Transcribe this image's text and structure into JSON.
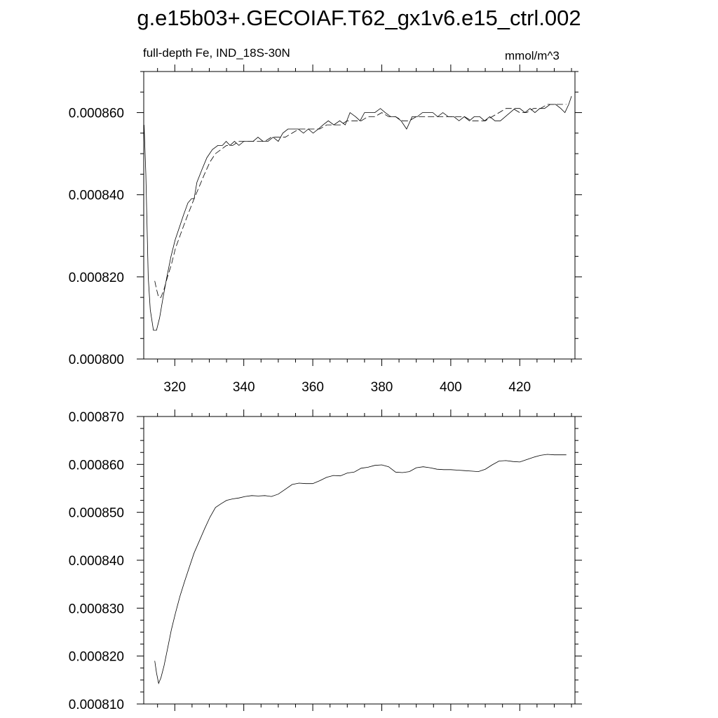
{
  "page": {
    "title": "g.e15b03+.GECOIAF.T62_gx1v6.e15_ctrl.002"
  },
  "chart_data": [
    {
      "type": "line",
      "title": "",
      "subtitle_left": "full-depth Fe, IND_18S-30N",
      "subtitle_right": "mmol/m^3",
      "xlabel": "",
      "ylabel": "",
      "xlim": [
        311,
        436
      ],
      "ylim": [
        0.0008,
        0.00087
      ],
      "x_ticks": [
        320,
        340,
        360,
        380,
        400,
        420
      ],
      "x_tick_labels": [
        "320",
        "340",
        "360",
        "380",
        "400",
        "420"
      ],
      "y_ticks": [
        0.0008,
        0.00082,
        0.00084,
        0.00086
      ],
      "y_tick_labels": [
        "0.000800",
        "0.000820",
        "0.000840",
        "0.000860"
      ],
      "grid": false,
      "series": [
        {
          "style": "solid",
          "x": [
            311.1,
            311.6,
            312.3,
            312.9,
            313.8,
            314.7,
            315.6,
            316.6,
            317.7,
            318.9,
            320.1,
            321.3,
            322.5,
            323.8,
            324.8,
            325.6,
            326.4,
            327.8,
            329.3,
            330.9,
            332.5,
            333.8,
            334.9,
            336.0,
            337.3,
            338.6,
            340.0,
            341.5,
            342.7,
            344.1,
            345.6,
            347.0,
            348.5,
            350.0,
            351.3,
            352.8,
            354.2,
            355.8,
            357.3,
            358.7,
            360.1,
            361.6,
            363.0,
            364.5,
            366.1,
            367.8,
            369.4,
            370.8,
            372.4,
            373.7,
            375.0,
            376.5,
            378.0,
            379.6,
            381.0,
            382.6,
            384.0,
            385.6,
            387.2,
            388.8,
            390.3,
            391.8,
            393.4,
            394.8,
            396.2,
            397.7,
            399.3,
            400.9,
            402.4,
            403.9,
            405.4,
            406.8,
            408.4,
            409.8,
            411.3,
            412.8,
            414.4,
            415.8,
            417.2,
            418.6,
            420.0,
            421.5,
            423.0,
            424.4,
            425.8,
            427.2,
            428.8,
            430.4,
            431.9,
            433.1,
            434.2,
            435.0
          ],
          "y": [
            0.000857,
            0.000845,
            0.00082,
            0.000812,
            0.000807,
            0.000807,
            0.00081,
            0.000815,
            0.00082,
            0.000825,
            0.000829,
            0.000832,
            0.000835,
            0.000838,
            0.000839,
            0.000839,
            0.000843,
            0.000846,
            0.000849,
            0.000851,
            0.000852,
            0.000852,
            0.000853,
            0.000852,
            0.000853,
            0.000852,
            0.000853,
            0.000853,
            0.000853,
            0.000854,
            0.000853,
            0.000853,
            0.000854,
            0.000853,
            0.000855,
            0.000856,
            0.000856,
            0.000856,
            0.000855,
            0.000856,
            0.000855,
            0.000856,
            0.000857,
            0.000858,
            0.000857,
            0.000858,
            0.000857,
            0.00086,
            0.000859,
            0.000858,
            0.00086,
            0.00086,
            0.00086,
            0.000861,
            0.00086,
            0.000859,
            0.000859,
            0.000858,
            0.000856,
            0.000859,
            0.000859,
            0.00086,
            0.00086,
            0.00086,
            0.000859,
            0.00086,
            0.000859,
            0.000859,
            0.000858,
            0.000859,
            0.000858,
            0.000859,
            0.000859,
            0.000858,
            0.000859,
            0.000858,
            0.000858,
            0.000859,
            0.00086,
            0.000861,
            0.000861,
            0.00086,
            0.000861,
            0.00086,
            0.000861,
            0.000861,
            0.000862,
            0.000862,
            0.000861,
            0.00086,
            0.000862,
            0.000864
          ]
        },
        {
          "style": "dashed",
          "x": [
            314.2,
            314.7,
            315.3,
            316.0,
            316.9,
            317.9,
            319.0,
            320.2,
            321.5,
            322.8,
            324.2,
            325.6,
            327.1,
            328.6,
            330.2,
            331.8,
            333.4,
            335.0,
            336.8,
            338.6,
            340.4,
            342.3,
            344.2,
            346.1,
            348.0,
            350.0,
            352.0,
            354.0,
            356.0,
            358.0,
            360.0,
            362.0,
            364.0,
            366.0,
            368.0,
            370.0,
            372.0,
            374.0,
            376.0,
            378.0,
            380.0,
            382.0,
            384.0,
            386.0,
            388.0,
            390.0,
            392.0,
            394.0,
            396.0,
            398.0,
            400.0,
            402.0,
            404.0,
            406.0,
            408.0,
            410.0,
            412.0,
            414.0,
            416.0,
            418.0,
            420.0,
            422.0,
            424.0,
            426.0,
            428.0,
            430.0,
            432.0,
            433.5
          ],
          "y": [
            0.000819,
            0.000817,
            0.000815,
            0.000815,
            0.000817,
            0.00082,
            0.000823,
            0.000827,
            0.00083,
            0.000833,
            0.000836,
            0.000839,
            0.000842,
            0.000845,
            0.000848,
            0.00085,
            0.000851,
            0.000852,
            0.000852,
            0.000853,
            0.000853,
            0.000853,
            0.000853,
            0.000853,
            0.000854,
            0.000854,
            0.000854,
            0.000855,
            0.000856,
            0.000856,
            0.000856,
            0.000856,
            0.000857,
            0.000857,
            0.000857,
            0.000858,
            0.000858,
            0.000858,
            0.000859,
            0.000859,
            0.00086,
            0.000859,
            0.000859,
            0.000858,
            0.000858,
            0.000859,
            0.000859,
            0.000859,
            0.000859,
            0.000859,
            0.000859,
            0.000859,
            0.000859,
            0.000858,
            0.000858,
            0.000858,
            0.000859,
            0.00086,
            0.000861,
            0.000861,
            0.00086,
            0.00086,
            0.000861,
            0.000861,
            0.000862,
            0.000862,
            0.000862,
            0.000862
          ]
        }
      ]
    },
    {
      "type": "line",
      "title": "",
      "xlabel": "",
      "ylabel": "",
      "xlim": [
        311,
        436
      ],
      "ylim": [
        0.00081,
        0.00087
      ],
      "x_ticks": [
        320,
        340,
        360,
        380,
        400,
        420
      ],
      "x_tick_labels": [],
      "y_ticks": [
        0.00081,
        0.00082,
        0.00083,
        0.00084,
        0.00085,
        0.00086,
        0.00087
      ],
      "y_tick_labels": [
        "0.000810",
        "0.000820",
        "0.000830",
        "0.000840",
        "0.000850",
        "0.000860",
        "0.000870"
      ],
      "grid": false,
      "series": [
        {
          "style": "solid",
          "x": [
            314.2,
            314.7,
            315.3,
            316.0,
            316.9,
            317.9,
            319.0,
            320.2,
            321.5,
            322.8,
            324.2,
            325.6,
            327.1,
            328.6,
            330.2,
            331.8,
            333.4,
            335.0,
            336.8,
            338.6,
            340.4,
            342.3,
            344.2,
            346.1,
            348.0,
            350.0,
            352.0,
            354.0,
            356.0,
            358.0,
            360.0,
            362.0,
            364.0,
            366.0,
            368.0,
            370.0,
            372.0,
            374.0,
            376.0,
            378.0,
            380.0,
            382.0,
            384.0,
            386.0,
            388.0,
            390.0,
            392.0,
            394.0,
            396.0,
            398.0,
            400.0,
            402.0,
            404.0,
            406.0,
            408.0,
            410.0,
            412.0,
            414.0,
            416.0,
            418.0,
            420.0,
            422.0,
            424.0,
            426.0,
            428.0,
            430.0,
            432.0,
            433.5
          ],
          "y": [
            0.000819,
            0.0008165,
            0.0008143,
            0.0008155,
            0.000818,
            0.0008215,
            0.0008255,
            0.000829,
            0.0008325,
            0.0008355,
            0.0008385,
            0.0008415,
            0.000844,
            0.0008465,
            0.000849,
            0.000851,
            0.0008518,
            0.0008525,
            0.0008528,
            0.000853,
            0.0008533,
            0.0008535,
            0.0008534,
            0.0008535,
            0.0008533,
            0.0008538,
            0.0008548,
            0.0008558,
            0.0008561,
            0.000856,
            0.000856,
            0.0008566,
            0.0008573,
            0.0008577,
            0.0008576,
            0.0008582,
            0.0008584,
            0.0008592,
            0.0008594,
            0.0008598,
            0.0008599,
            0.0008595,
            0.0008584,
            0.0008583,
            0.0008585,
            0.0008593,
            0.0008595,
            0.0008593,
            0.000859,
            0.0008589,
            0.0008589,
            0.0008588,
            0.0008587,
            0.0008586,
            0.0008585,
            0.000859,
            0.0008599,
            0.0008607,
            0.0008608,
            0.0008606,
            0.0008605,
            0.000861,
            0.0008615,
            0.0008619,
            0.0008621,
            0.000862,
            0.000862,
            0.000862
          ]
        }
      ]
    }
  ]
}
